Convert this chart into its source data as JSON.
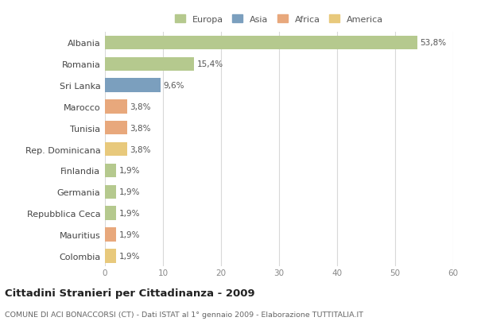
{
  "categories": [
    "Albania",
    "Romania",
    "Sri Lanka",
    "Marocco",
    "Tunisia",
    "Rep. Dominicana",
    "Finlandia",
    "Germania",
    "Repubblica Ceca",
    "Mauritius",
    "Colombia"
  ],
  "values": [
    53.8,
    15.4,
    9.6,
    3.8,
    3.8,
    3.8,
    1.9,
    1.9,
    1.9,
    1.9,
    1.9
  ],
  "labels": [
    "53,8%",
    "15,4%",
    "9,6%",
    "3,8%",
    "3,8%",
    "3,8%",
    "1,9%",
    "1,9%",
    "1,9%",
    "1,9%",
    "1,9%"
  ],
  "colors": [
    "#b5c98e",
    "#b5c98e",
    "#7b9fbe",
    "#e8a87c",
    "#e8a87c",
    "#e8c97c",
    "#b5c98e",
    "#b5c98e",
    "#b5c98e",
    "#e8a87c",
    "#e8c97c"
  ],
  "legend_labels": [
    "Europa",
    "Asia",
    "Africa",
    "America"
  ],
  "legend_colors": [
    "#b5c98e",
    "#7b9fbe",
    "#e8a87c",
    "#e8c97c"
  ],
  "title": "Cittadini Stranieri per Cittadinanza - 2009",
  "subtitle": "COMUNE DI ACI BONACCORSI (CT) - Dati ISTAT al 1° gennaio 2009 - Elaborazione TUTTITALIA.IT",
  "xlim": [
    0,
    60
  ],
  "xticks": [
    0,
    10,
    20,
    30,
    40,
    50,
    60
  ],
  "background_color": "#ffffff",
  "grid_color": "#d8d8d8"
}
